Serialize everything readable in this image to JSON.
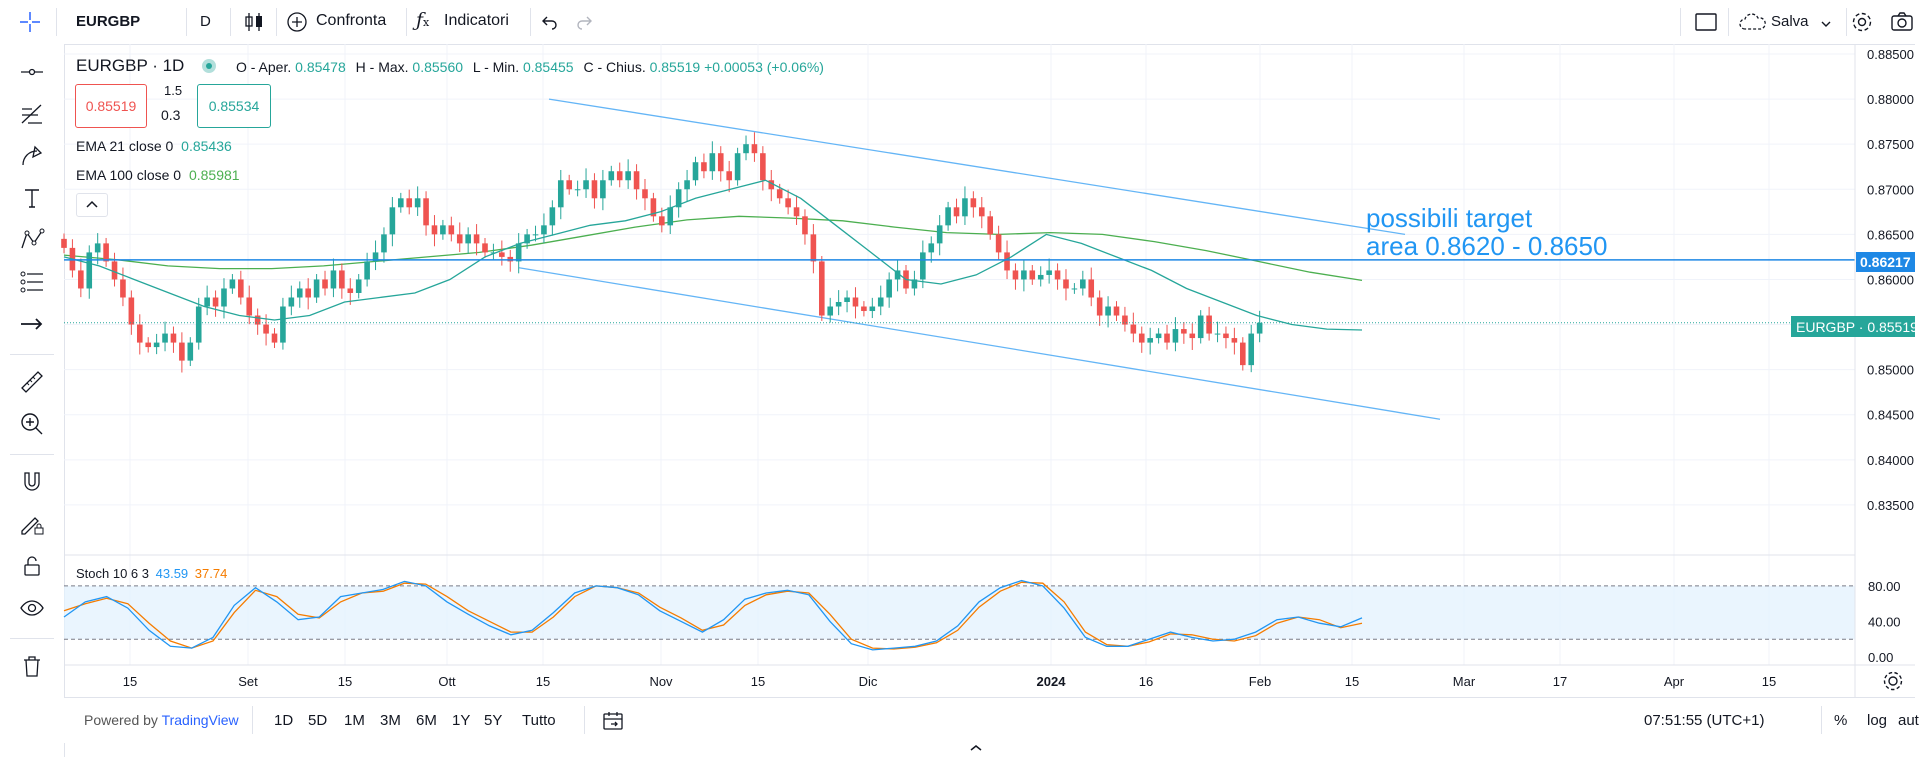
{
  "toolbar": {
    "symbol": "EURGBP",
    "interval": "D",
    "compare_label": "Confronta",
    "indicators_label": "Indicatori",
    "save_label": "Salva"
  },
  "legend": {
    "title": "EURGBP · 1D",
    "o_label": "O - Aper.",
    "o_value": "0.85478",
    "h_label": "H - Max.",
    "h_value": "0.85560",
    "l_label": "L - Min.",
    "l_value": "0.85455",
    "c_label": "C - Chius.",
    "c_value": "0.85519",
    "change": "+0.00053 (+0.06%)",
    "bid": "0.85519",
    "spread_top": "1.5",
    "spread_bottom": "0.3",
    "ask": "0.85534",
    "ema21_label": "EMA 21 close 0",
    "ema21_value": "0.85436",
    "ema100_label": "EMA 100 close 0",
    "ema100_value": "0.85981",
    "stoch_label": "Stoch 10 6 3",
    "stoch_k": "43.59",
    "stoch_d": "37.74"
  },
  "annotation": {
    "line1": "possibili target",
    "line2": "area 0.8620 - 0.8650"
  },
  "bottom": {
    "powered": "Powered by",
    "brand": "TradingView",
    "ranges": [
      "1D",
      "5D",
      "1M",
      "3M",
      "6M",
      "1Y",
      "5Y",
      "Tutto"
    ],
    "clock": "07:51:55 (UTC+1)",
    "percent": "%",
    "log": "log",
    "auto": "aut"
  },
  "colors": {
    "up": "#26a69a",
    "down": "#ef5350",
    "ema21": "#26a69a",
    "ema100": "#4caf50",
    "channel": "#64b5f6",
    "hline": "#1e88e5",
    "annotation": "#2196f3",
    "stoch_k": "#2196f3",
    "stoch_d": "#f57c00"
  },
  "chart_data": {
    "type": "candlestick",
    "title": "EURGBP · 1D",
    "price_axis": {
      "min": 0.83,
      "max": 0.885,
      "ticks": [
        "0.88500",
        "0.88000",
        "0.87500",
        "0.87000",
        "0.86500",
        "0.86000",
        "0.85500",
        "0.85000",
        "0.84500",
        "0.84000",
        "0.83500"
      ],
      "hline_label": "0.86217",
      "last_label": "EURGBP · 0.85519"
    },
    "time_axis": {
      "labels": [
        "15",
        "Set",
        "15",
        "Ott",
        "15",
        "Nov",
        "15",
        "Dic",
        "2024",
        "16",
        "Feb",
        "15",
        "Mar",
        "17",
        "Apr",
        "15"
      ],
      "bold": [
        "2024"
      ]
    },
    "close_series": [
      0.8635,
      0.861,
      0.859,
      0.863,
      0.864,
      0.862,
      0.86,
      0.858,
      0.855,
      0.853,
      0.8525,
      0.853,
      0.854,
      0.853,
      0.851,
      0.853,
      0.857,
      0.858,
      0.857,
      0.859,
      0.86,
      0.858,
      0.856,
      0.855,
      0.854,
      0.853,
      0.857,
      0.858,
      0.859,
      0.858,
      0.86,
      0.859,
      0.861,
      0.859,
      0.8585,
      0.86,
      0.862,
      0.863,
      0.865,
      0.868,
      0.869,
      0.868,
      0.869,
      0.866,
      0.865,
      0.866,
      0.865,
      0.864,
      0.865,
      0.864,
      0.863,
      0.863,
      0.8625,
      0.862,
      0.864,
      0.865,
      0.865,
      0.866,
      0.868,
      0.871,
      0.87,
      0.87,
      0.871,
      0.869,
      0.871,
      0.872,
      0.871,
      0.872,
      0.87,
      0.869,
      0.867,
      0.866,
      0.868,
      0.87,
      0.871,
      0.873,
      0.872,
      0.874,
      0.872,
      0.871,
      0.874,
      0.875,
      0.874,
      0.871,
      0.87,
      0.869,
      0.868,
      0.867,
      0.865,
      0.862,
      0.856,
      0.857,
      0.8575,
      0.858,
      0.857,
      0.8565,
      0.857,
      0.858,
      0.86,
      0.861,
      0.859,
      0.86,
      0.863,
      0.864,
      0.866,
      0.868,
      0.867,
      0.869,
      0.868,
      0.867,
      0.865,
      0.863,
      0.861,
      0.86,
      0.861,
      0.86,
      0.8605,
      0.861,
      0.86,
      0.859,
      0.859,
      0.86,
      0.858,
      0.856,
      0.857,
      0.856,
      0.855,
      0.854,
      0.853,
      0.8535,
      0.854,
      0.853,
      0.8545,
      0.854,
      0.8535,
      0.856,
      0.854,
      0.854,
      0.8535,
      0.853,
      0.8505,
      0.854,
      0.8552
    ],
    "ema21": [
      0.8625,
      0.8615,
      0.86,
      0.8585,
      0.857,
      0.856,
      0.8555,
      0.856,
      0.8575,
      0.858,
      0.8585,
      0.86,
      0.8625,
      0.864,
      0.865,
      0.866,
      0.8665,
      0.8675,
      0.869,
      0.87,
      0.871,
      0.869,
      0.866,
      0.863,
      0.86,
      0.8595,
      0.8605,
      0.8625,
      0.865,
      0.864,
      0.8625,
      0.861,
      0.859,
      0.8575,
      0.856,
      0.855,
      0.8545,
      0.8544
    ],
    "ema100": [
      0.8627,
      0.8622,
      0.8615,
      0.8612,
      0.8612,
      0.8615,
      0.862,
      0.8625,
      0.863,
      0.8638,
      0.8648,
      0.8658,
      0.8666,
      0.867,
      0.8668,
      0.8665,
      0.8658,
      0.8652,
      0.865,
      0.8652,
      0.865,
      0.8642,
      0.8632,
      0.862,
      0.8608,
      0.8599
    ],
    "hline": 0.86217,
    "channel_upper": [
      0.88,
      0.865
    ],
    "channel_lower": [
      0.8613,
      0.8445
    ],
    "stoch_axis": {
      "ticks": [
        "80.00",
        "40.00",
        "0.00"
      ],
      "upper_band": 80,
      "lower_band": 20
    },
    "stoch_k": [
      45,
      62,
      68,
      55,
      30,
      12,
      10,
      22,
      58,
      78,
      62,
      42,
      45,
      68,
      72,
      76,
      85,
      80,
      62,
      48,
      35,
      25,
      30,
      50,
      72,
      80,
      78,
      70,
      52,
      40,
      28,
      42,
      65,
      72,
      75,
      70,
      40,
      15,
      8,
      10,
      12,
      18,
      35,
      62,
      78,
      86,
      80,
      55,
      22,
      12,
      12,
      20,
      28,
      22,
      18,
      20,
      28,
      42,
      45,
      38,
      34,
      44
    ],
    "stoch_d": [
      52,
      60,
      66,
      60,
      38,
      18,
      10,
      18,
      50,
      75,
      68,
      48,
      44,
      62,
      72,
      74,
      83,
      82,
      68,
      52,
      40,
      28,
      28,
      45,
      68,
      80,
      78,
      72,
      56,
      44,
      30,
      36,
      58,
      70,
      74,
      72,
      48,
      20,
      10,
      9,
      11,
      16,
      30,
      56,
      74,
      84,
      83,
      62,
      28,
      14,
      12,
      17,
      26,
      25,
      20,
      18,
      24,
      38,
      45,
      42,
      33,
      38
    ]
  }
}
